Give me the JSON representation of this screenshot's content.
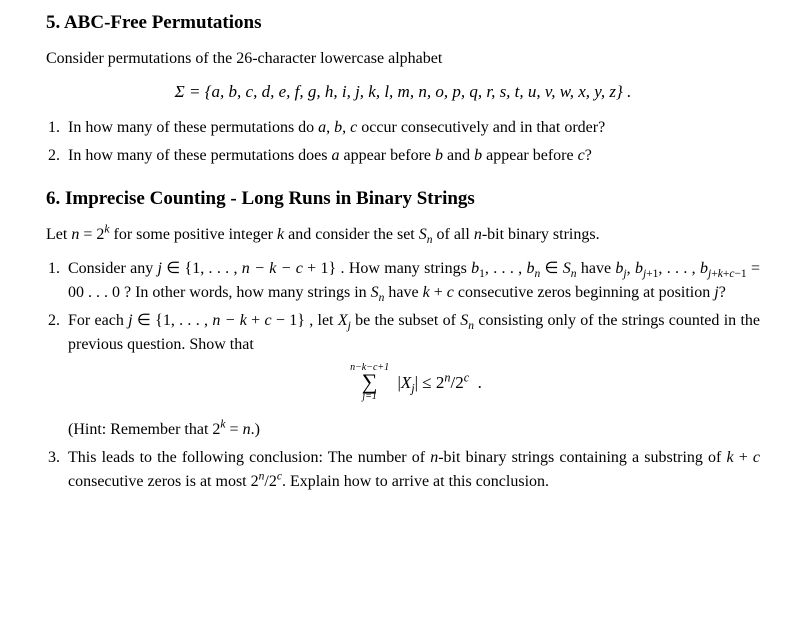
{
  "sec5": {
    "title": "5. ABC-Free Permutations",
    "intro": "Consider permutations of the 26-character lowercase alphabet",
    "sigma": "Σ = {a, b, c, d, e, f, g, h, i, j, k, l, m, n, o, p, q, r, s, t, u, v, w, x, y, z}  .",
    "q1": "In how many of these permutations do a, b, c occur consecutively and in that order?",
    "q2": "In how many of these permutations does a appear before b and b appear before c?"
  },
  "sec6": {
    "title": "6. Imprecise Counting - Long Runs in Binary Strings",
    "intro_a": "Let ",
    "intro_b": " for some positive integer ",
    "intro_c": " and consider the set ",
    "intro_d": " of all ",
    "intro_e": "-bit binary strings.",
    "q1a": "Consider  any  ",
    "q1b": " .   How   many   strings   ",
    "q1c": "   have ",
    "q1d": " ?  In  other  words,  how  many  strings  in  ",
    "q1e": "  have  ",
    "q1f": " consecutive zeros beginning at position ",
    "q1g": "?",
    "q2a": "For each ",
    "q2b": "  , let ",
    "q2c": " be the subset of ",
    "q2d": " consisting only of the strings counted in the previous question. Show that",
    "hint": "(Hint: Remember that ",
    "hint2": ".)",
    "q3a": "This leads to the following conclusion: The number of ",
    "q3b": "-bit binary strings containing a substring  of  ",
    "q3c": "  consecutive  zeros  is  at  most  ",
    "q3d": ".  Explain  how  to  arrive  at  this conclusion."
  }
}
